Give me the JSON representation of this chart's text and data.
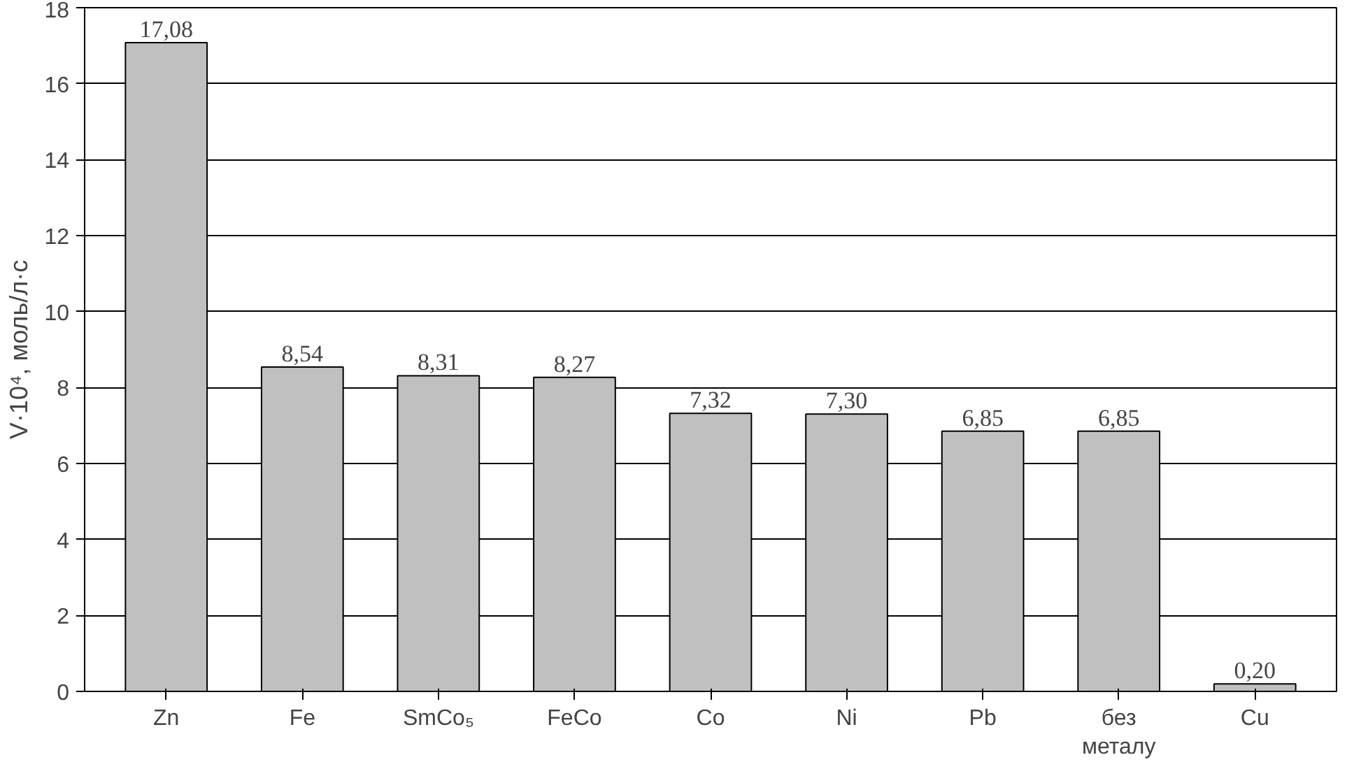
{
  "chart_data": {
    "type": "bar",
    "ylabel": "V·10⁴, моль/л·с",
    "categories": [
      "Zn",
      "Fe",
      "SmCo₅",
      "FeCo",
      "Co",
      "Ni",
      "Pb",
      "без металу",
      "Cu"
    ],
    "values": [
      17.08,
      8.54,
      8.31,
      8.27,
      7.32,
      7.3,
      6.85,
      6.85,
      0.2
    ],
    "value_labels": [
      "17,08",
      "8,54",
      "8,31",
      "8,27",
      "7,32",
      "7,30",
      "6,85",
      "6,85",
      "0,20"
    ],
    "color": "#c0c0c0",
    "ylim": [
      0,
      18
    ],
    "yticks": [
      0,
      2,
      4,
      6,
      8,
      10,
      12,
      14,
      16,
      18
    ],
    "grid": "y"
  }
}
